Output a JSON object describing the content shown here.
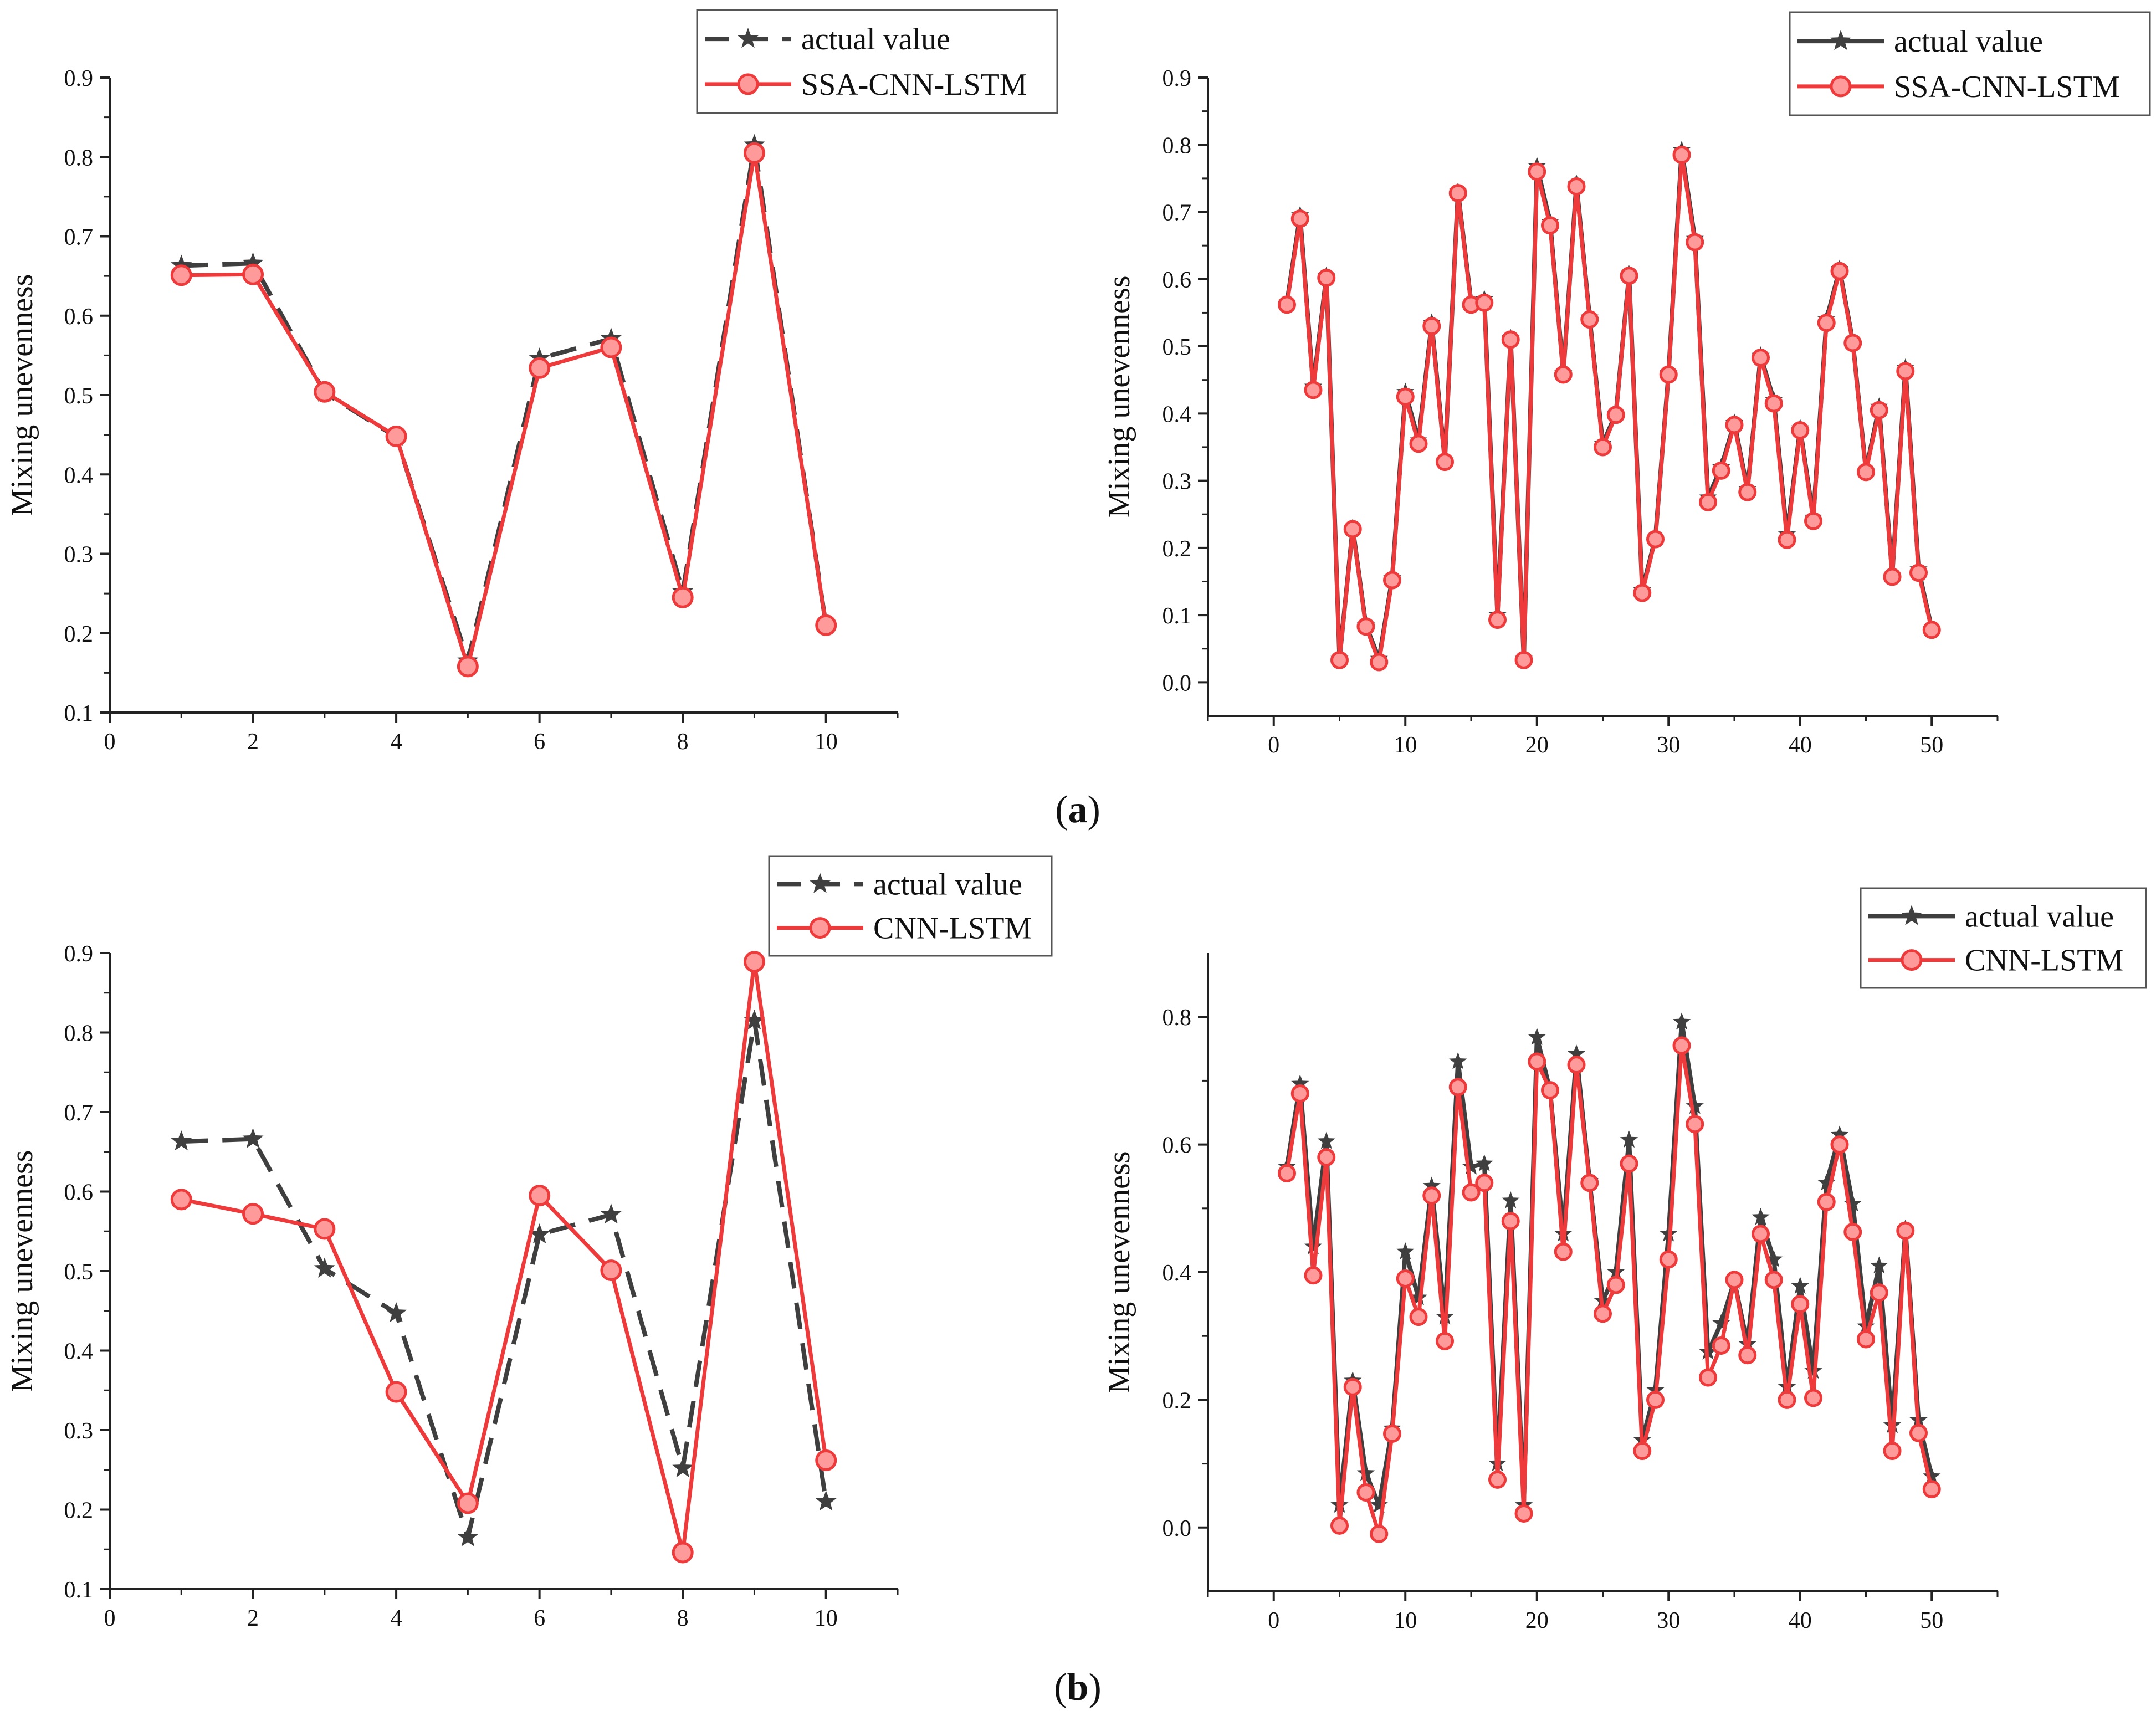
{
  "captions": {
    "a": "a",
    "b": "b"
  },
  "colors": {
    "actual": "#3f3f3f",
    "predicted": "#ee3a3a",
    "marker_fill": "#ff9a9a",
    "axis": "#222222"
  },
  "chart_data": [
    {
      "id": "a-left",
      "type": "line",
      "caption_group": "a",
      "title": "",
      "xlabel": "",
      "ylabel": "Mixing unevenness",
      "xlim": [
        0,
        11
      ],
      "ylim": [
        0.1,
        0.9
      ],
      "xticks": [
        0,
        2,
        4,
        6,
        8,
        10
      ],
      "yticks": [
        0.1,
        0.2,
        0.3,
        0.4,
        0.5,
        0.6,
        0.7,
        0.8,
        0.9
      ],
      "ytick_format": 1,
      "legend_position": "top-right",
      "legend_boxed": true,
      "x": [
        1,
        2,
        3,
        4,
        5,
        6,
        7,
        8,
        9,
        10
      ],
      "series": [
        {
          "name": "actual value",
          "style": "dashed-star",
          "values": [
            0.663,
            0.666,
            0.503,
            0.447,
            0.165,
            0.546,
            0.571,
            0.252,
            0.815,
            0.21
          ]
        },
        {
          "name": "SSA-CNN-LSTM",
          "style": "solid-circle",
          "values": [
            0.651,
            0.652,
            0.504,
            0.448,
            0.158,
            0.534,
            0.56,
            0.245,
            0.805,
            0.21
          ]
        }
      ]
    },
    {
      "id": "a-right",
      "type": "line",
      "caption_group": "a",
      "title": "",
      "xlabel": "",
      "ylabel": "Mixing unevenness",
      "xlim": [
        -5,
        55
      ],
      "ylim": [
        -0.05,
        0.9
      ],
      "xticks": [
        0,
        10,
        20,
        30,
        40,
        50
      ],
      "yticks": [
        0.0,
        0.1,
        0.2,
        0.3,
        0.4,
        0.5,
        0.6,
        0.7,
        0.8,
        0.9
      ],
      "ytick_format": 1,
      "legend_position": "top-right",
      "legend_boxed": true,
      "x": [
        1,
        2,
        3,
        4,
        5,
        6,
        7,
        8,
        9,
        10,
        11,
        12,
        13,
        14,
        15,
        16,
        17,
        18,
        19,
        20,
        21,
        22,
        23,
        24,
        25,
        26,
        27,
        28,
        29,
        30,
        31,
        32,
        33,
        34,
        35,
        36,
        37,
        38,
        39,
        40,
        41,
        42,
        43,
        44,
        45,
        46,
        47,
        48,
        49,
        50
      ],
      "series": [
        {
          "name": "actual value",
          "style": "solid-star",
          "values": [
            0.565,
            0.695,
            0.44,
            0.605,
            0.035,
            0.23,
            0.085,
            0.035,
            0.155,
            0.432,
            0.36,
            0.535,
            0.33,
            0.73,
            0.565,
            0.57,
            0.1,
            0.512,
            0.035,
            0.768,
            0.685,
            0.46,
            0.742,
            0.543,
            0.355,
            0.4,
            0.607,
            0.137,
            0.215,
            0.46,
            0.792,
            0.66,
            0.275,
            0.32,
            0.386,
            0.287,
            0.486,
            0.42,
            0.22,
            0.378,
            0.245,
            0.54,
            0.615,
            0.507,
            0.315,
            0.41,
            0.16,
            0.468,
            0.168,
            0.08
          ]
        },
        {
          "name": "SSA-CNN-LSTM",
          "style": "solid-circle",
          "values": [
            0.562,
            0.69,
            0.435,
            0.602,
            0.033,
            0.228,
            0.083,
            0.03,
            0.152,
            0.425,
            0.355,
            0.53,
            0.328,
            0.728,
            0.562,
            0.565,
            0.093,
            0.51,
            0.033,
            0.76,
            0.68,
            0.458,
            0.738,
            0.54,
            0.35,
            0.398,
            0.605,
            0.133,
            0.213,
            0.458,
            0.785,
            0.655,
            0.268,
            0.315,
            0.383,
            0.283,
            0.483,
            0.415,
            0.212,
            0.375,
            0.24,
            0.535,
            0.612,
            0.505,
            0.313,
            0.405,
            0.157,
            0.463,
            0.163,
            0.078
          ]
        }
      ]
    },
    {
      "id": "b-left",
      "type": "line",
      "caption_group": "b",
      "title": "",
      "xlabel": "",
      "ylabel": "Mixing unevenness",
      "xlim": [
        0,
        11
      ],
      "ylim": [
        0.1,
        0.9
      ],
      "xticks": [
        0,
        2,
        4,
        6,
        8,
        10
      ],
      "yticks": [
        0.1,
        0.2,
        0.3,
        0.4,
        0.5,
        0.6,
        0.7,
        0.8,
        0.9
      ],
      "ytick_format": 1,
      "legend_position": "top-right",
      "legend_boxed": true,
      "x": [
        1,
        2,
        3,
        4,
        5,
        6,
        7,
        8,
        9,
        10
      ],
      "series": [
        {
          "name": "actual value",
          "style": "dashed-star",
          "values": [
            0.663,
            0.666,
            0.503,
            0.447,
            0.165,
            0.546,
            0.571,
            0.252,
            0.815,
            0.21
          ]
        },
        {
          "name": "CNN-LSTM",
          "style": "solid-circle",
          "values": [
            0.59,
            0.572,
            0.553,
            0.348,
            0.208,
            0.595,
            0.501,
            0.146,
            0.889,
            0.262
          ]
        }
      ]
    },
    {
      "id": "b-right",
      "type": "line",
      "caption_group": "b",
      "title": "",
      "xlabel": "",
      "ylabel": "Mixing unevenness",
      "xlim": [
        -5,
        55
      ],
      "ylim": [
        -0.1,
        0.9
      ],
      "xticks": [
        0,
        10,
        20,
        30,
        40,
        50
      ],
      "yticks": [
        0.0,
        0.2,
        0.4,
        0.6,
        0.8
      ],
      "ytick_format": 1,
      "legend_position": "top-right",
      "legend_boxed": true,
      "x": [
        1,
        2,
        3,
        4,
        5,
        6,
        7,
        8,
        9,
        10,
        11,
        12,
        13,
        14,
        15,
        16,
        17,
        18,
        19,
        20,
        21,
        22,
        23,
        24,
        25,
        26,
        27,
        28,
        29,
        30,
        31,
        32,
        33,
        34,
        35,
        36,
        37,
        38,
        39,
        40,
        41,
        42,
        43,
        44,
        45,
        46,
        47,
        48,
        49,
        50
      ],
      "series": [
        {
          "name": "actual value",
          "style": "solid-star",
          "values": [
            0.565,
            0.695,
            0.44,
            0.605,
            0.035,
            0.23,
            0.085,
            0.035,
            0.155,
            0.432,
            0.36,
            0.535,
            0.33,
            0.73,
            0.565,
            0.57,
            0.1,
            0.512,
            0.035,
            0.768,
            0.685,
            0.46,
            0.742,
            0.543,
            0.355,
            0.4,
            0.607,
            0.137,
            0.215,
            0.46,
            0.792,
            0.66,
            0.275,
            0.32,
            0.386,
            0.287,
            0.486,
            0.42,
            0.22,
            0.378,
            0.245,
            0.54,
            0.615,
            0.507,
            0.315,
            0.41,
            0.16,
            0.468,
            0.168,
            0.08
          ]
        },
        {
          "name": "CNN-LSTM",
          "style": "solid-circle",
          "values": [
            0.555,
            0.68,
            0.395,
            0.58,
            0.003,
            0.22,
            0.055,
            -0.01,
            0.147,
            0.39,
            0.33,
            0.52,
            0.292,
            0.69,
            0.525,
            0.54,
            0.075,
            0.48,
            0.022,
            0.73,
            0.685,
            0.432,
            0.725,
            0.54,
            0.335,
            0.38,
            0.57,
            0.12,
            0.2,
            0.42,
            0.755,
            0.632,
            0.235,
            0.285,
            0.388,
            0.27,
            0.46,
            0.388,
            0.2,
            0.35,
            0.203,
            0.51,
            0.6,
            0.463,
            0.295,
            0.368,
            0.12,
            0.465,
            0.148,
            0.06
          ]
        }
      ]
    }
  ]
}
